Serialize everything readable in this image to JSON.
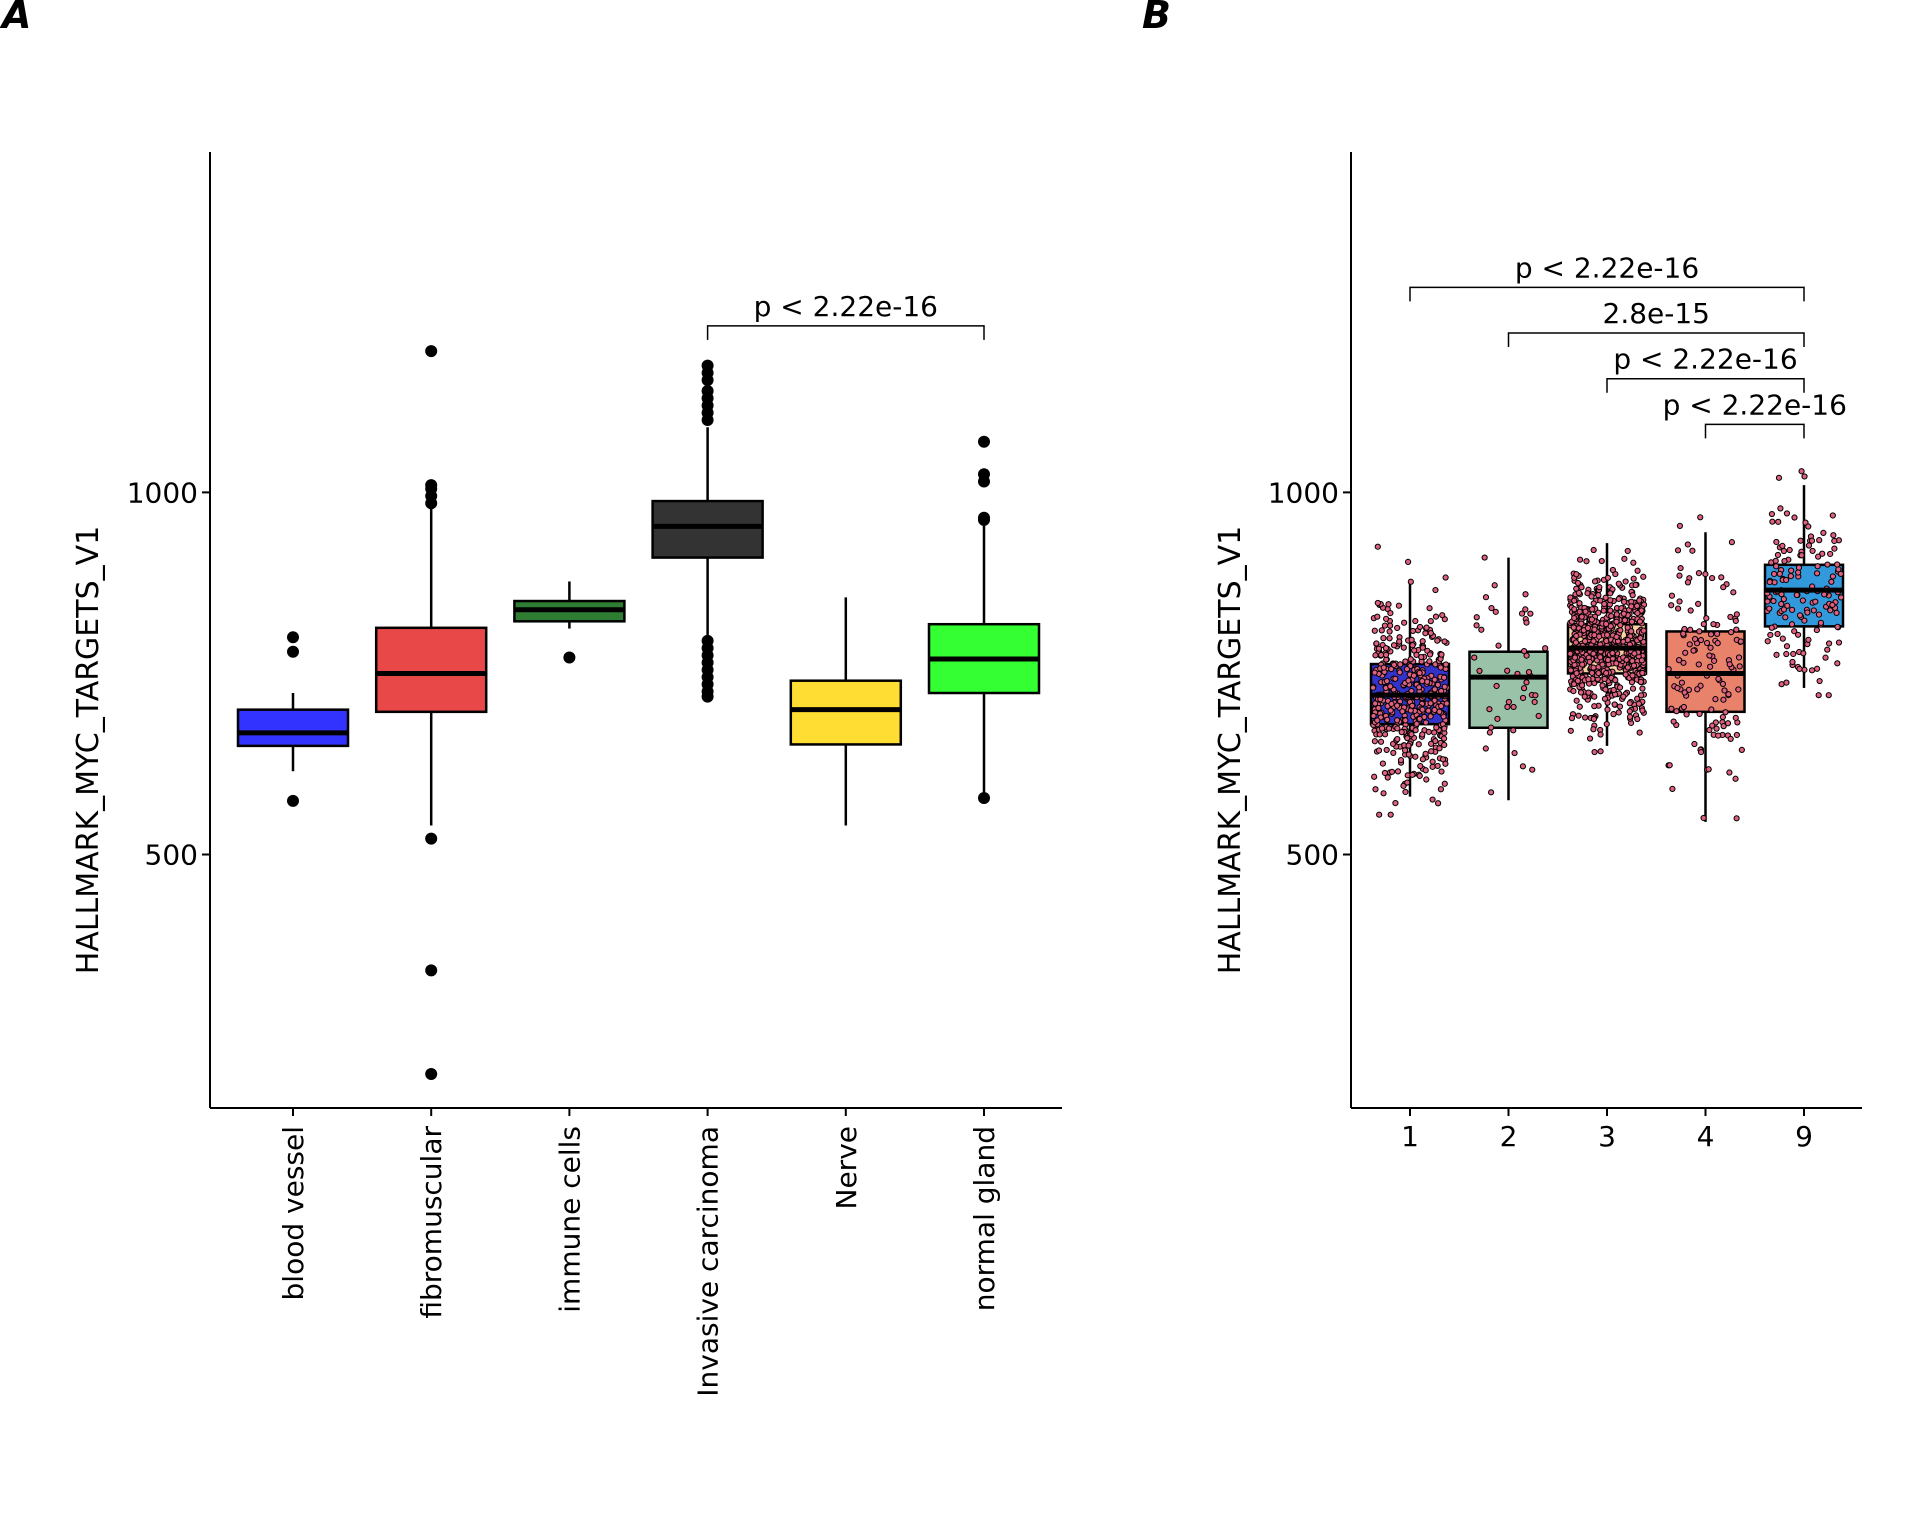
{
  "chart_data": [
    {
      "panel": "A",
      "type": "boxplot",
      "ylabel": "HALLMARK_MYC_TARGETS_V1",
      "ylim": [
        150,
        1470
      ],
      "yticks": [
        500,
        1000
      ],
      "categories": [
        "blood vessel",
        "fibromuscular",
        "immune cells",
        "Invasive carcinoma",
        "Nerve",
        "normal gland"
      ],
      "boxes": [
        {
          "name": "blood vessel",
          "color": "#3333ff",
          "q1": 650,
          "median": 668,
          "q3": 700,
          "whisker_low": 615,
          "whisker_high": 723,
          "outliers": [
            574,
            780,
            800
          ]
        },
        {
          "name": "fibromuscular",
          "color": "#e84848",
          "q1": 697,
          "median": 750,
          "q3": 813,
          "whisker_low": 540,
          "whisker_high": 978,
          "outliers": [
            197,
            340,
            522,
            985,
            995,
            1005,
            1010,
            1195
          ]
        },
        {
          "name": "immune cells",
          "color": "#2e7d32",
          "q1": 822,
          "median": 838,
          "q3": 850,
          "whisker_low": 812,
          "whisker_high": 877,
          "outliers": [
            772
          ]
        },
        {
          "name": "Invasive carcinoma",
          "color": "#333333",
          "q1": 910,
          "median": 953,
          "q3": 988,
          "whisker_low": 800,
          "whisker_high": 1090,
          "outliers": [
            718,
            725,
            735,
            745,
            755,
            765,
            775,
            785,
            795,
            1100,
            1110,
            1120,
            1130,
            1140,
            1155,
            1165,
            1175
          ]
        },
        {
          "name": "Nerve",
          "color": "#ffdd33",
          "q1": 652,
          "median": 700,
          "q3": 740,
          "whisker_low": 540,
          "whisker_high": 855,
          "outliers": []
        },
        {
          "name": "normal gland",
          "color": "#33ff33",
          "q1": 723,
          "median": 770,
          "q3": 818,
          "whisker_low": 580,
          "whisker_high": 955,
          "outliers": [
            578,
            962,
            965,
            1015,
            1025,
            1070
          ]
        }
      ],
      "comparisons": [
        {
          "from": "Invasive carcinoma",
          "to": "normal gland",
          "label": "p < 2.22e-16",
          "y": 1230
        }
      ]
    },
    {
      "panel": "B",
      "type": "boxplot",
      "ylabel": "HALLMARK_MYC_TARGETS_V1",
      "ylim": [
        150,
        1470
      ],
      "yticks": [
        500,
        1000
      ],
      "categories": [
        "1",
        "2",
        "3",
        "4",
        "9"
      ],
      "boxes": [
        {
          "name": "1",
          "color": "#3333cc",
          "q1": 680,
          "median": 720,
          "q3": 763,
          "whisker_low": 580,
          "whisker_high": 880,
          "jitter": {
            "count": 450,
            "min": 555,
            "max": 925
          }
        },
        {
          "name": "2",
          "color": "#99c2a8",
          "q1": 675,
          "median": 745,
          "q3": 780,
          "whisker_low": 575,
          "whisker_high": 910,
          "jitter": {
            "count": 45,
            "min": 575,
            "max": 910
          }
        },
        {
          "name": "3",
          "color": "#f7d4a1",
          "q1": 750,
          "median": 785,
          "q3": 818,
          "whisker_low": 650,
          "whisker_high": 930,
          "jitter": {
            "count": 700,
            "min": 600,
            "max": 955
          }
        },
        {
          "name": "4",
          "color": "#e8826a",
          "q1": 697,
          "median": 750,
          "q3": 808,
          "whisker_low": 545,
          "whisker_high": 945,
          "jitter": {
            "count": 130,
            "min": 550,
            "max": 990
          }
        },
        {
          "name": "9",
          "color": "#3399dd",
          "q1": 815,
          "median": 865,
          "q3": 900,
          "whisker_low": 730,
          "whisker_high": 1010,
          "jitter": {
            "count": 150,
            "min": 720,
            "max": 1075
          }
        }
      ],
      "comparisons": [
        {
          "from": "1",
          "to": "9",
          "label": "p < 2.22e-16",
          "y": 1283
        },
        {
          "from": "2",
          "to": "9",
          "label": "2.8e-15",
          "y": 1220
        },
        {
          "from": "3",
          "to": "9",
          "label": "p < 2.22e-16",
          "y": 1157
        },
        {
          "from": "4",
          "to": "9",
          "label": "p < 2.22e-16",
          "y": 1094
        }
      ],
      "point_color": "#e06080"
    }
  ],
  "panels": {
    "a_label": "A",
    "b_label": "B"
  }
}
